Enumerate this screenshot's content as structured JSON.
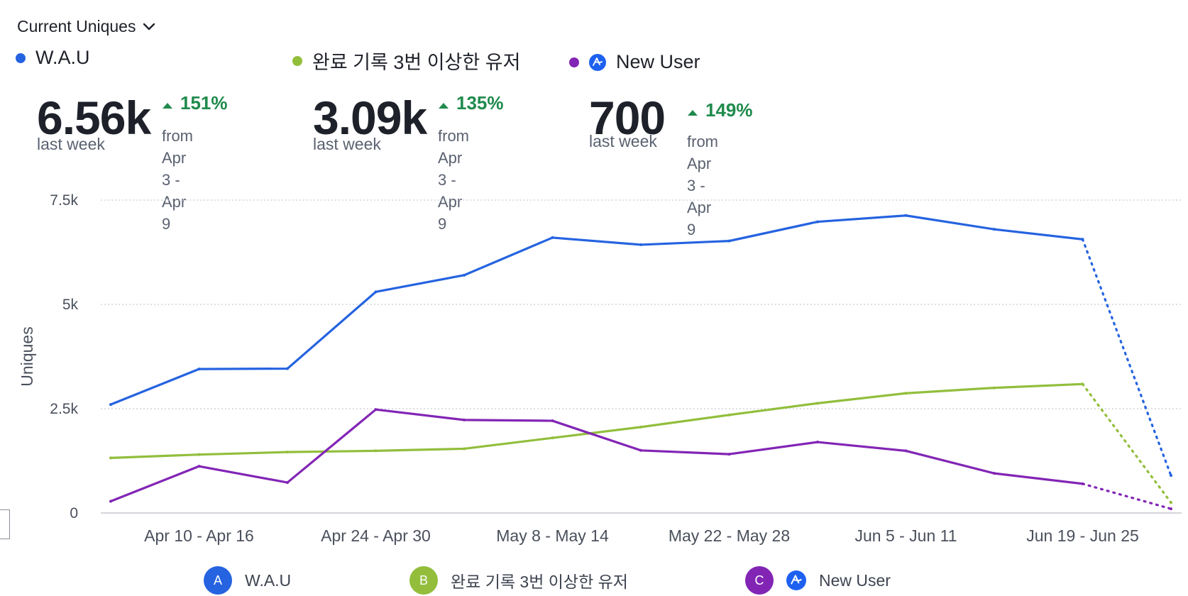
{
  "header": {
    "metric_label": "Current Uniques",
    "dropdown_icon": "chevron-down-icon"
  },
  "summary": [
    {
      "name": "W.A.U",
      "color": "#2563e0",
      "value": "6.56k",
      "period": "last week",
      "change": "151%",
      "from_line1": "from Apr 3 - Apr",
      "from_line2": "9"
    },
    {
      "name": "완료 기록 3번 이상한 유저",
      "color": "#92be3c",
      "value": "3.09k",
      "period": "last week",
      "change": "135%",
      "from_line1": "from Apr 3 - Apr",
      "from_line2": "9"
    },
    {
      "name": "New User",
      "color": "#8225b5",
      "value": "700",
      "period": "last week",
      "change": "149%",
      "from_line1": "from Apr 3 - Apr 9",
      "from_line2": "",
      "brand_icon": "amplitude-logo-icon"
    }
  ],
  "chart_data": {
    "type": "line",
    "ylabel": "Uniques",
    "ylim": [
      0,
      7500
    ],
    "yticks": [
      0,
      2500,
      5000,
      7500
    ],
    "ytick_labels": [
      "0",
      "2.5k",
      "5k",
      "7.5k"
    ],
    "x_tick_labels": [
      "Apr 10 - Apr 16",
      "Apr 24 - Apr 30",
      "May 8 - May 14",
      "May 22 - May 28",
      "Jun 5 - Jun 11",
      "Jun 19 - Jun 25"
    ],
    "x_tick_positions": [
      1,
      3,
      5,
      7,
      9,
      11
    ],
    "grid": true,
    "incomplete_from_index": 11,
    "series": [
      {
        "name": "W.A.U",
        "letter": "A",
        "color": "#2563e0",
        "values": [
          2600,
          3450,
          3460,
          5300,
          5700,
          6600,
          6430,
          6520,
          6980,
          7130,
          6800,
          6560,
          900
        ]
      },
      {
        "name": "완료 기록 3번 이상한 유저",
        "letter": "B",
        "color": "#92be3c",
        "values": [
          1320,
          1400,
          1460,
          1490,
          1540,
          1800,
          2060,
          2350,
          2630,
          2870,
          3000,
          3090,
          250
        ]
      },
      {
        "name": "New User",
        "letter": "C",
        "color": "#8225b5",
        "values": [
          280,
          1120,
          730,
          2480,
          2230,
          2210,
          1500,
          1410,
          1700,
          1490,
          950,
          700,
          100
        ]
      }
    ]
  },
  "legend": [
    {
      "letter": "A",
      "name": "W.A.U",
      "color": "#2563e0"
    },
    {
      "letter": "B",
      "name": "완료 기록 3번 이상한 유저",
      "color": "#92be3c"
    },
    {
      "letter": "C",
      "name": "New User",
      "color": "#8225b5",
      "brand_icon": "amplitude-logo-icon"
    }
  ]
}
